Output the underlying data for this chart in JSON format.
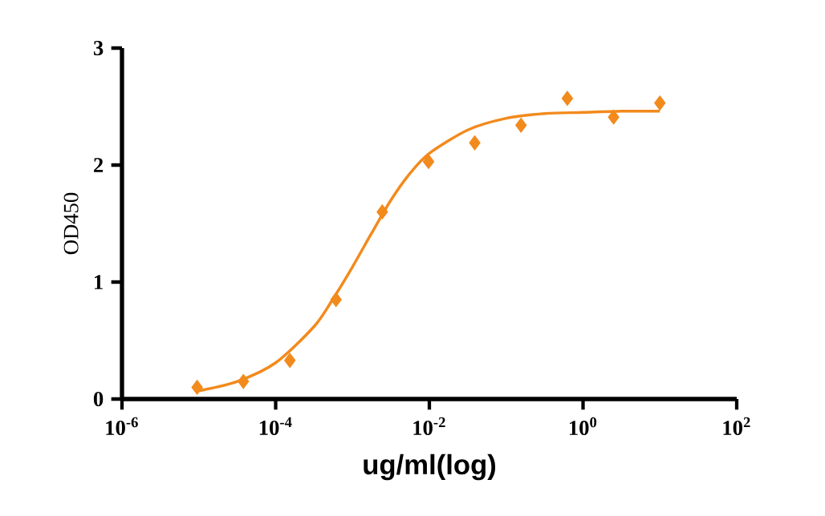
{
  "chart_data": {
    "type": "scatter",
    "xlabel": "ug/ml(log)",
    "ylabel": "OD450",
    "log": "x",
    "marker": "diamond",
    "xlim": [
      1e-06,
      100
    ],
    "ylim": [
      0,
      3
    ],
    "xticks": [
      {
        "value": 1e-06,
        "label": "10$^{-6}$"
      },
      {
        "value": 0.0001,
        "label": "10$^{-4}$"
      },
      {
        "value": 0.01,
        "label": "10$^{-2}$"
      },
      {
        "value": 1,
        "label": "10$^{0}$"
      },
      {
        "value": 100,
        "label": "10$^{2}$"
      }
    ],
    "yticks": [
      0,
      1,
      2,
      3
    ],
    "grid": false,
    "series": [
      {
        "color": "#f28a1c",
        "x": [
          9.5e-06,
          3.8e-05,
          0.000153,
          0.00061,
          0.00244,
          0.00977,
          0.039,
          0.156,
          0.625,
          2.5,
          10
        ],
        "values": [
          0.1,
          0.15,
          0.33,
          0.85,
          1.6,
          2.03,
          2.19,
          2.34,
          2.57,
          2.41,
          2.53
        ]
      },
      {
        "type": "line",
        "marker": "none",
        "color": "#f28a1c",
        "x": [
          1e-05,
          3.16e-05,
          0.0001,
          0.000316,
          0.000562,
          0.001,
          0.00178,
          0.00316,
          0.00562,
          0.01,
          0.0316,
          0.1,
          0.316,
          1,
          3.16,
          10
        ],
        "values": [
          0.07,
          0.15,
          0.31,
          0.62,
          0.86,
          1.13,
          1.42,
          1.7,
          1.93,
          2.1,
          2.3,
          2.4,
          2.44,
          2.45,
          2.46,
          2.46
        ]
      }
    ]
  }
}
